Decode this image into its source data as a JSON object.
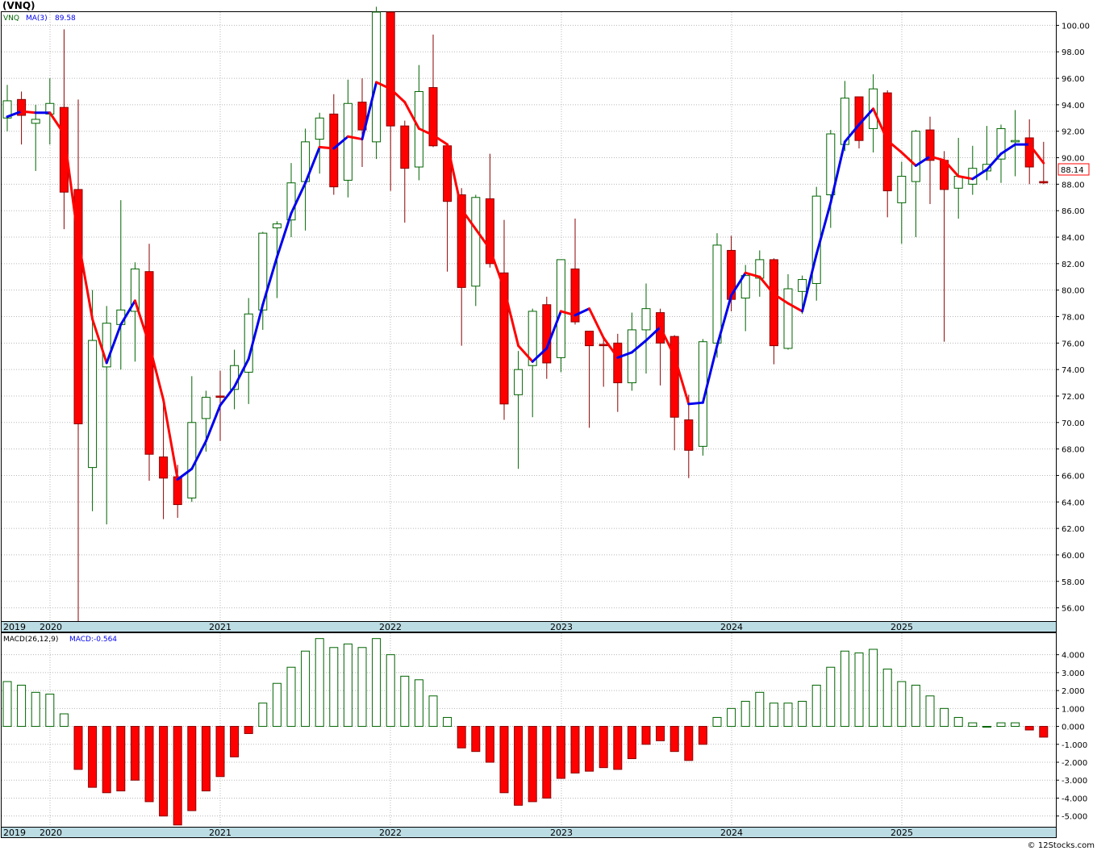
{
  "header": {
    "title": "(VNQ)",
    "watermark": "© 12Stocks.com"
  },
  "chart_data": [
    {
      "type": "candlestick",
      "legend": {
        "symbol": "VNQ",
        "ma_label": "MA(3)",
        "ma_value": "89.58"
      },
      "last_price_label": "88.14",
      "ylim": [
        55,
        101
      ],
      "y_ticks": [
        "56.00",
        "58.00",
        "60.00",
        "62.00",
        "64.00",
        "66.00",
        "68.00",
        "70.00",
        "72.00",
        "74.00",
        "76.00",
        "78.00",
        "80.00",
        "82.00",
        "84.00",
        "86.00",
        "88.00",
        "90.00",
        "92.00",
        "94.00",
        "96.00",
        "98.00",
        "100.00"
      ],
      "x_labels": [
        "2019",
        "2020",
        "2021",
        "2022",
        "2023",
        "2024",
        "2025"
      ],
      "colors": {
        "up": "#006400",
        "down": "#ff0000",
        "ma_up": "#0000ee",
        "ma_down": "#ff0000",
        "grid": "#b8b8b8",
        "axis_band": "#bcdce4"
      },
      "candles": [
        [
          93.0,
          95.5,
          92.0,
          94.3
        ],
        [
          94.4,
          95.0,
          91.0,
          93.2
        ],
        [
          92.6,
          94.0,
          89.0,
          92.9
        ],
        [
          93.3,
          96.0,
          91.0,
          94.1
        ],
        [
          93.8,
          99.7,
          84.6,
          87.4
        ],
        [
          87.6,
          94.4,
          55.0,
          69.9
        ],
        [
          66.6,
          80.0,
          63.3,
          76.2
        ],
        [
          74.2,
          78.8,
          62.3,
          77.5
        ],
        [
          77.4,
          86.8,
          74.0,
          78.5
        ],
        [
          78.4,
          82.1,
          74.6,
          81.6
        ],
        [
          81.4,
          83.5,
          65.6,
          67.6
        ],
        [
          67.4,
          71.5,
          62.7,
          65.8
        ],
        [
          65.9,
          66.8,
          62.8,
          63.8
        ],
        [
          64.3,
          73.5,
          64.0,
          70.0
        ],
        [
          70.3,
          72.4,
          67.8,
          71.9
        ],
        [
          72.0,
          73.9,
          68.6,
          71.9
        ],
        [
          72.5,
          75.5,
          71.0,
          74.3
        ],
        [
          73.8,
          79.4,
          71.4,
          78.2
        ],
        [
          78.5,
          84.4,
          77.0,
          84.3
        ],
        [
          84.7,
          85.2,
          79.4,
          85.0
        ],
        [
          85.3,
          89.6,
          84.0,
          88.1
        ],
        [
          88.2,
          92.2,
          84.5,
          91.2
        ],
        [
          91.4,
          93.4,
          88.8,
          93.0
        ],
        [
          93.3,
          94.8,
          87.2,
          87.8
        ],
        [
          88.3,
          95.9,
          87.0,
          94.1
        ],
        [
          94.2,
          96.0,
          89.3,
          92.1
        ],
        [
          91.2,
          101.4,
          89.9,
          101.0
        ],
        [
          101.0,
          101.0,
          87.5,
          92.4
        ],
        [
          92.4,
          92.8,
          85.1,
          89.2
        ],
        [
          89.3,
          97.0,
          88.3,
          95.0
        ],
        [
          95.3,
          99.3,
          90.8,
          90.9
        ],
        [
          90.9,
          91.0,
          81.4,
          86.7
        ],
        [
          87.2,
          87.7,
          75.8,
          80.2
        ],
        [
          80.3,
          87.2,
          78.8,
          87.0
        ],
        [
          86.9,
          90.3,
          81.7,
          82.0
        ],
        [
          81.3,
          85.3,
          70.2,
          71.4
        ],
        [
          72.1,
          75.4,
          66.5,
          74.0
        ],
        [
          74.3,
          78.6,
          70.4,
          78.4
        ],
        [
          78.9,
          79.5,
          73.3,
          74.5
        ],
        [
          74.9,
          82.3,
          73.8,
          82.3
        ],
        [
          81.6,
          85.4,
          77.4,
          77.6
        ],
        [
          76.9,
          76.9,
          69.6,
          75.8
        ],
        [
          75.9,
          76.3,
          72.7,
          75.8
        ],
        [
          76.0,
          76.7,
          70.8,
          73.0
        ],
        [
          73.0,
          78.3,
          72.4,
          77.0
        ],
        [
          77.0,
          80.5,
          73.7,
          78.6
        ],
        [
          78.3,
          78.6,
          72.8,
          76.0
        ],
        [
          76.5,
          76.6,
          67.9,
          70.4
        ],
        [
          70.2,
          72.1,
          65.8,
          67.9
        ],
        [
          68.2,
          76.3,
          67.5,
          76.1
        ],
        [
          76.0,
          84.3,
          74.9,
          83.4
        ],
        [
          83.0,
          84.1,
          78.4,
          79.3
        ],
        [
          79.4,
          81.9,
          76.9,
          81.1
        ],
        [
          80.9,
          83.0,
          79.5,
          82.3
        ],
        [
          82.3,
          82.4,
          74.4,
          75.8
        ],
        [
          75.6,
          81.2,
          75.5,
          80.1
        ],
        [
          79.9,
          81.1,
          78.2,
          80.8
        ],
        [
          80.5,
          87.8,
          79.2,
          87.1
        ],
        [
          87.2,
          92.1,
          84.7,
          91.8
        ],
        [
          91.0,
          95.8,
          90.5,
          94.5
        ],
        [
          94.6,
          94.6,
          90.7,
          91.3
        ],
        [
          92.2,
          96.3,
          90.4,
          95.2
        ],
        [
          94.9,
          95.1,
          85.5,
          87.5
        ],
        [
          86.6,
          89.7,
          83.5,
          88.6
        ],
        [
          88.2,
          92.1,
          84.0,
          92.0
        ],
        [
          92.1,
          93.1,
          86.5,
          89.8
        ],
        [
          89.8,
          90.5,
          76.1,
          87.6
        ],
        [
          87.7,
          91.5,
          85.4,
          88.6
        ],
        [
          88.0,
          90.9,
          87.2,
          89.2
        ],
        [
          89.0,
          92.4,
          88.3,
          89.5
        ],
        [
          89.9,
          92.5,
          88.1,
          92.2
        ],
        [
          91.2,
          93.6,
          88.6,
          91.3
        ],
        [
          91.5,
          92.9,
          88.0,
          89.3
        ],
        [
          88.2,
          91.2,
          88.0,
          88.1
        ]
      ],
      "ma3": [
        93.1,
        93.5,
        93.4,
        93.4,
        91.8,
        83.8,
        77.8,
        74.5,
        77.4,
        79.2,
        75.9,
        71.7,
        65.7,
        66.5,
        68.6,
        71.3,
        72.7,
        74.8,
        78.9,
        82.5,
        85.8,
        88.1,
        90.8,
        90.7,
        91.6,
        91.4,
        95.7,
        95.2,
        94.2,
        92.2,
        91.7,
        91.0,
        86.1,
        84.6,
        83.1,
        80.1,
        75.8,
        74.6,
        75.6,
        78.4,
        78.1,
        78.6,
        76.4,
        74.9,
        75.3,
        76.2,
        77.2,
        75.0,
        71.4,
        71.5,
        75.8,
        79.6,
        81.3,
        81.0,
        79.7,
        79.0,
        78.4,
        82.7,
        86.6,
        91.2,
        92.5,
        93.7,
        91.3,
        90.4,
        89.4,
        90.1,
        89.8,
        88.6,
        88.4,
        89.1,
        90.3,
        91.0,
        91.0,
        89.6
      ]
    },
    {
      "type": "bar",
      "legend": {
        "label": "MACD(26,12,9)",
        "value_label": "MACD:-0.564"
      },
      "ylim": [
        -5.6,
        5.2
      ],
      "y_ticks": [
        "-5.000",
        "-4.000",
        "-3.000",
        "-2.000",
        "-1.000",
        "0.000",
        "1.000",
        "2.000",
        "3.000",
        "4.000"
      ],
      "x_labels": [
        "2019",
        "2020",
        "2021",
        "2022",
        "2023",
        "2024",
        "2025"
      ],
      "values": [
        2.5,
        2.3,
        1.9,
        1.8,
        0.7,
        -2.4,
        -3.4,
        -3.7,
        -3.6,
        -3.0,
        -4.2,
        -5.0,
        -5.5,
        -4.7,
        -3.6,
        -2.8,
        -1.7,
        -0.4,
        1.3,
        2.4,
        3.3,
        4.2,
        4.9,
        4.4,
        4.6,
        4.4,
        4.9,
        4.0,
        2.8,
        2.6,
        1.7,
        0.5,
        -1.2,
        -1.4,
        -2.0,
        -3.7,
        -4.4,
        -4.2,
        -4.0,
        -2.9,
        -2.6,
        -2.5,
        -2.3,
        -2.4,
        -1.8,
        -1.0,
        -0.8,
        -1.4,
        -1.9,
        -1.0,
        0.5,
        1.0,
        1.4,
        1.9,
        1.3,
        1.3,
        1.4,
        2.3,
        3.3,
        4.2,
        4.1,
        4.3,
        3.2,
        2.5,
        2.3,
        1.7,
        1.0,
        0.5,
        0.2,
        0.0,
        0.2,
        0.2,
        -0.2,
        -0.6
      ]
    }
  ]
}
